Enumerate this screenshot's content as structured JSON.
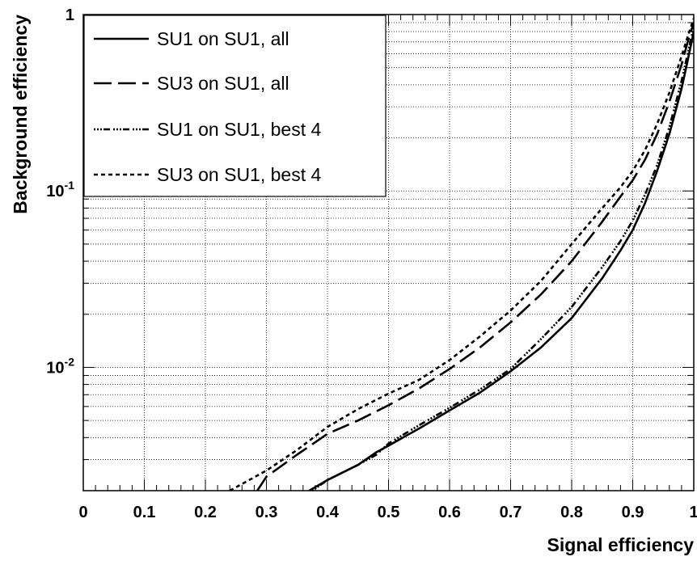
{
  "chart_data": {
    "type": "line",
    "title": "",
    "xlabel": "Signal efficiency",
    "ylabel": "Background efficiency",
    "xlim": [
      0,
      1
    ],
    "ylim": [
      0.002,
      1
    ],
    "yscale": "log",
    "grid": true,
    "legend_position": "top-left",
    "x_ticks": [
      {
        "value": 0,
        "label": "0"
      },
      {
        "value": 0.1,
        "label": "0.1"
      },
      {
        "value": 0.2,
        "label": "0.2"
      },
      {
        "value": 0.3,
        "label": "0.3"
      },
      {
        "value": 0.4,
        "label": "0.4"
      },
      {
        "value": 0.5,
        "label": "0.5"
      },
      {
        "value": 0.6,
        "label": "0.6"
      },
      {
        "value": 0.7,
        "label": "0.7"
      },
      {
        "value": 0.8,
        "label": "0.8"
      },
      {
        "value": 0.9,
        "label": "0.9"
      },
      {
        "value": 1,
        "label": "1"
      }
    ],
    "y_ticks": [
      {
        "value": 0.01,
        "base": "10",
        "exp": "-2"
      },
      {
        "value": 0.1,
        "base": "10",
        "exp": "-1"
      },
      {
        "value": 1,
        "base": "1",
        "exp": ""
      }
    ],
    "series": [
      {
        "name": "SU1 on SU1, all",
        "dash": "solid",
        "x": [
          0.37,
          0.4,
          0.45,
          0.48,
          0.5,
          0.55,
          0.6,
          0.65,
          0.7,
          0.75,
          0.8,
          0.85,
          0.88,
          0.9,
          0.92,
          0.94,
          0.96,
          0.98,
          0.99,
          1.0
        ],
        "y": [
          0.002,
          0.0023,
          0.0028,
          0.0033,
          0.0036,
          0.0045,
          0.0057,
          0.0072,
          0.0095,
          0.013,
          0.019,
          0.032,
          0.046,
          0.06,
          0.085,
          0.13,
          0.21,
          0.38,
          0.55,
          0.8
        ]
      },
      {
        "name": "SU3 on SU1, all",
        "dash": "long",
        "x": [
          0.285,
          0.3,
          0.35,
          0.4,
          0.45,
          0.5,
          0.55,
          0.6,
          0.65,
          0.7,
          0.75,
          0.8,
          0.85,
          0.88,
          0.9,
          0.92,
          0.94,
          0.96,
          0.98,
          0.99,
          1.0
        ],
        "y": [
          0.002,
          0.0024,
          0.0032,
          0.0042,
          0.005,
          0.0061,
          0.0076,
          0.0098,
          0.013,
          0.018,
          0.026,
          0.04,
          0.067,
          0.093,
          0.115,
          0.15,
          0.21,
          0.32,
          0.52,
          0.7,
          0.9
        ]
      },
      {
        "name": "SU1 on SU1, best 4",
        "dash": "dashdot",
        "x": [
          0.375,
          0.4,
          0.45,
          0.48,
          0.5,
          0.55,
          0.6,
          0.65,
          0.7,
          0.75,
          0.8,
          0.85,
          0.88,
          0.9,
          0.92,
          0.94,
          0.96,
          0.98,
          0.99,
          1.0
        ],
        "y": [
          0.002,
          0.0023,
          0.0028,
          0.0032,
          0.0037,
          0.0047,
          0.0059,
          0.0075,
          0.0098,
          0.0145,
          0.022,
          0.037,
          0.052,
          0.068,
          0.095,
          0.14,
          0.23,
          0.42,
          0.6,
          0.85
        ]
      },
      {
        "name": "SU3 on SU1, best 4",
        "dash": "short",
        "x": [
          0.24,
          0.3,
          0.35,
          0.4,
          0.45,
          0.5,
          0.55,
          0.6,
          0.65,
          0.7,
          0.75,
          0.8,
          0.85,
          0.88,
          0.9,
          0.92,
          0.94,
          0.96,
          0.98,
          0.99,
          1.0
        ],
        "y": [
          0.002,
          0.0026,
          0.0034,
          0.0046,
          0.0058,
          0.0071,
          0.0085,
          0.011,
          0.015,
          0.021,
          0.031,
          0.05,
          0.08,
          0.105,
          0.13,
          0.17,
          0.24,
          0.36,
          0.58,
          0.75,
          0.95
        ]
      }
    ]
  }
}
